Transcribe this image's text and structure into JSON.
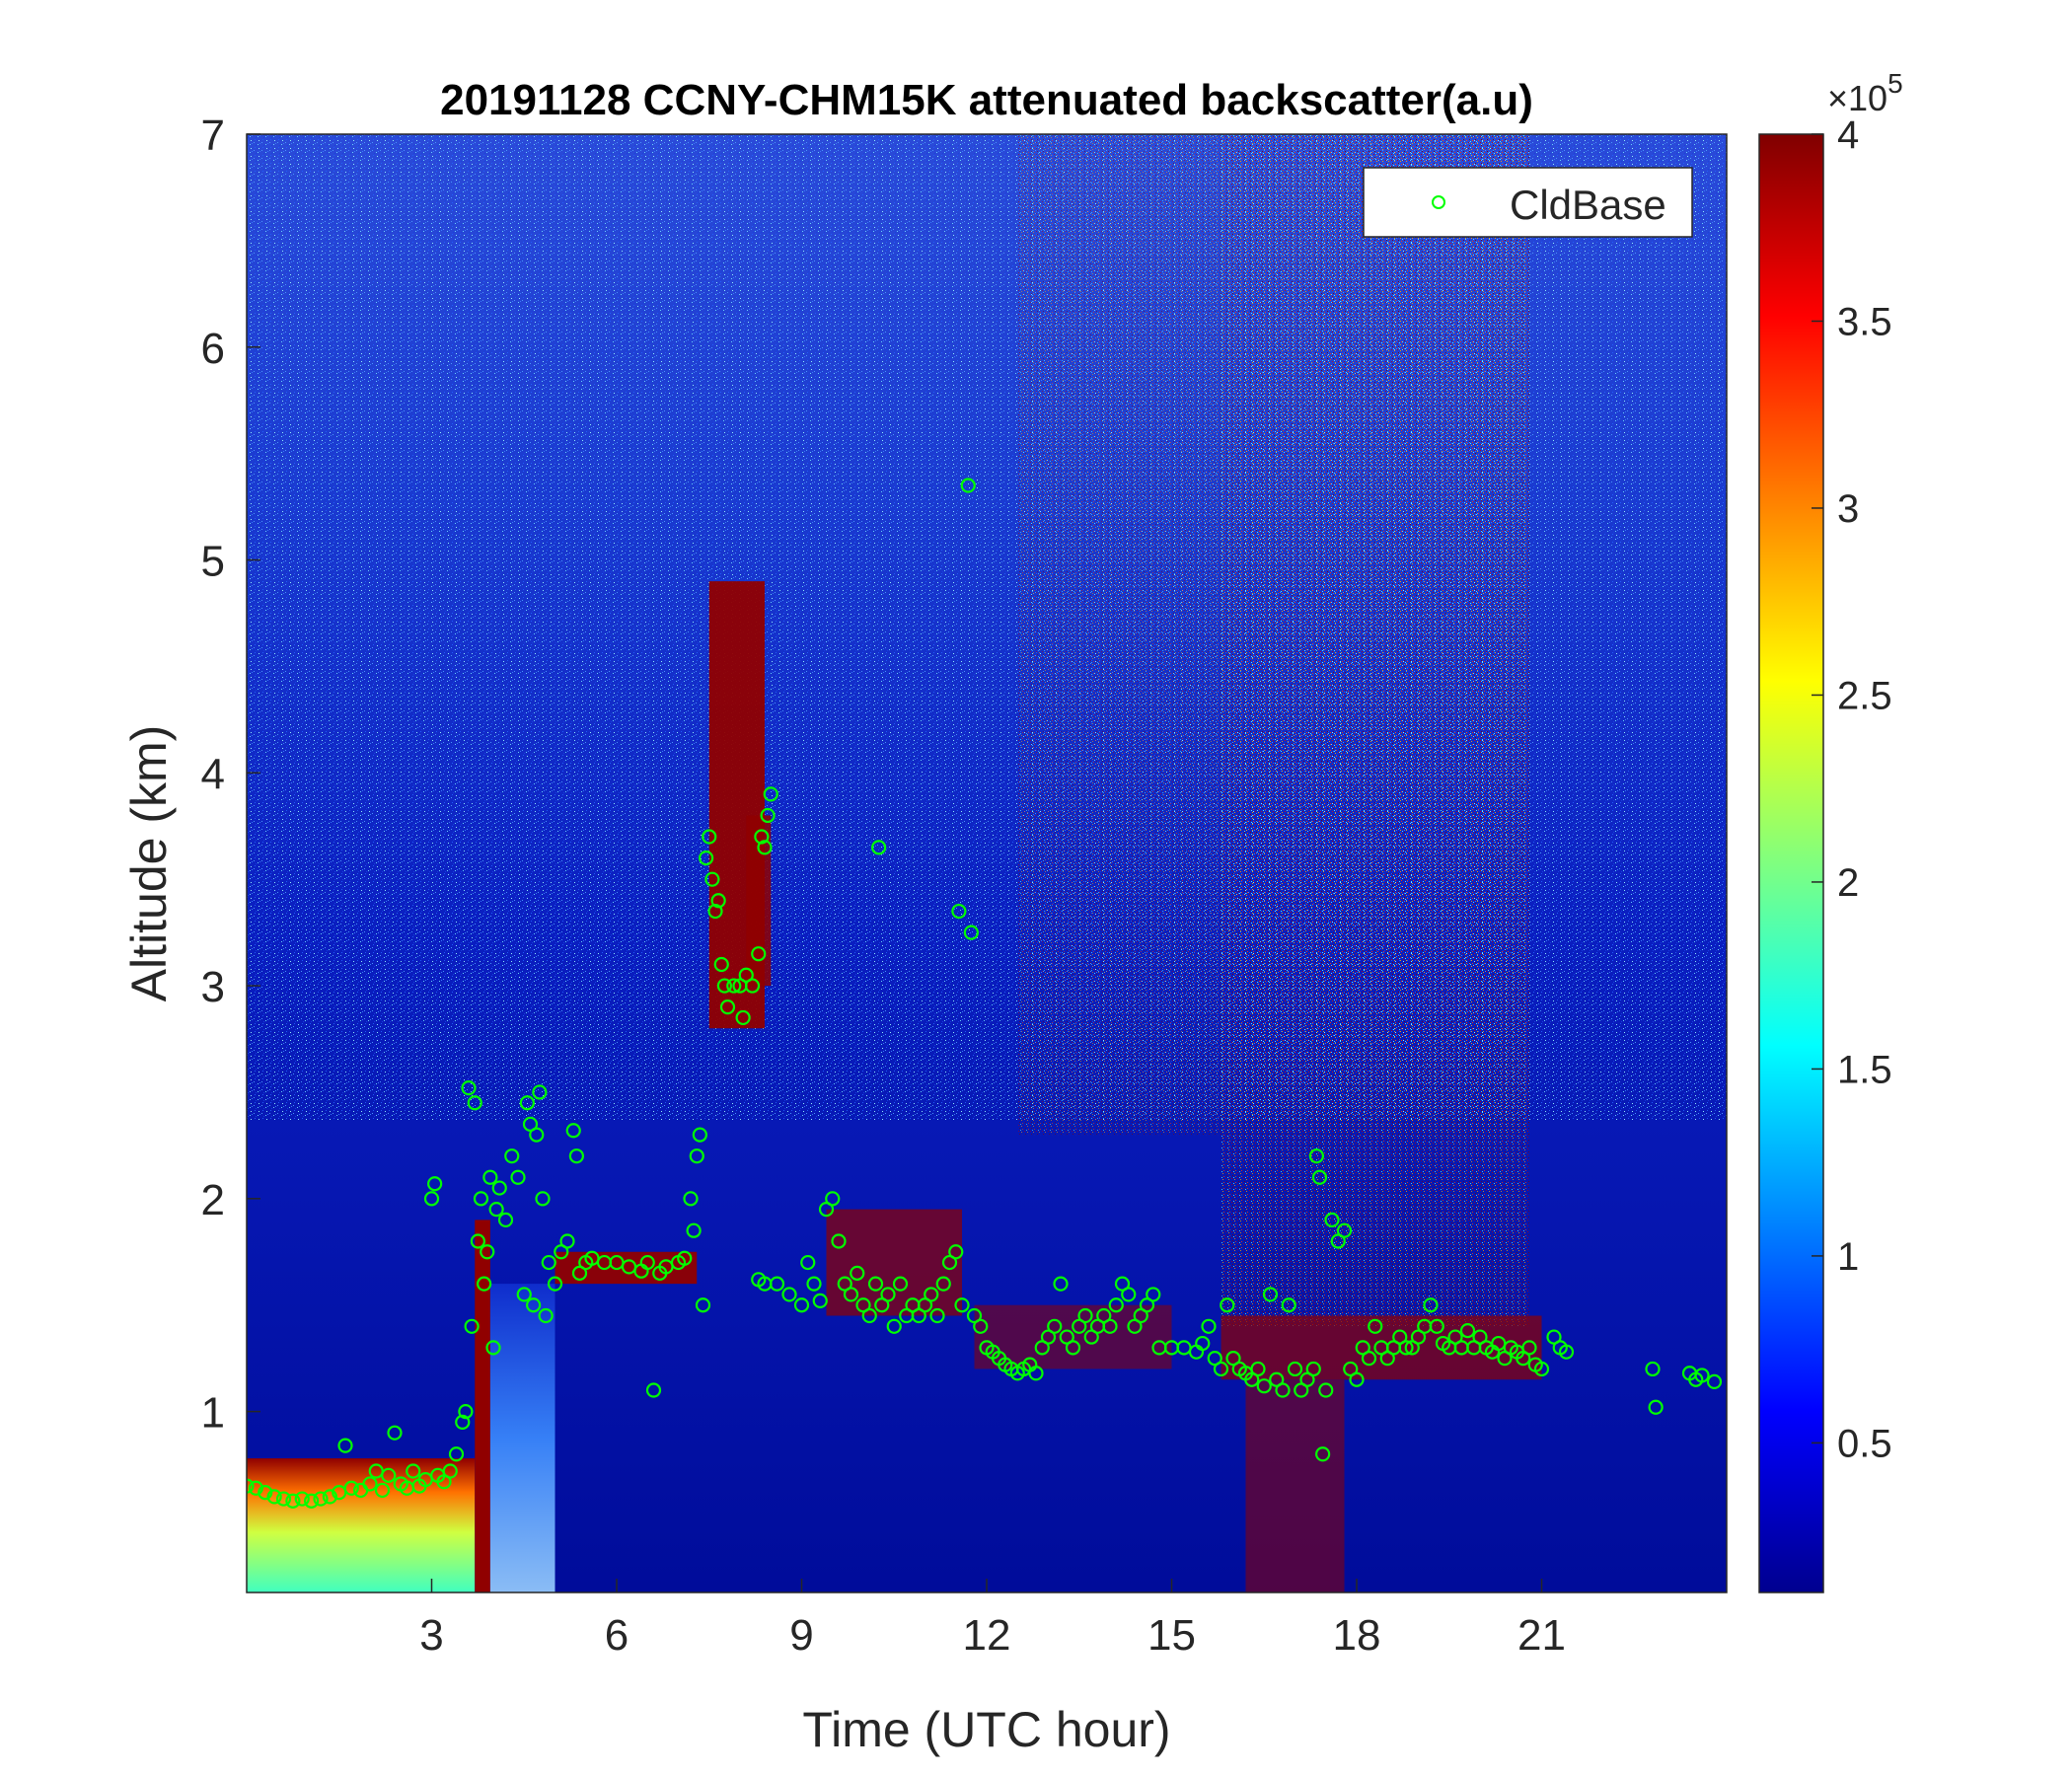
{
  "chart_data": {
    "type": "heatmap",
    "title": "20191128 CCNY-CHM15K attenuated backscatter(a.u)",
    "xlabel": "Time (UTC hour)",
    "ylabel": "Altitude (km)",
    "xlim": [
      0,
      24
    ],
    "ylim": [
      0.15,
      7
    ],
    "xticks": [
      3,
      6,
      9,
      12,
      15,
      18,
      21
    ],
    "yticks": [
      1,
      2,
      3,
      4,
      5,
      6,
      7
    ],
    "colorbar": {
      "colormap": "jet",
      "clim": [
        0.1,
        4
      ],
      "ticks": [
        0.5,
        1,
        1.5,
        2,
        2.5,
        3,
        3.5,
        4
      ],
      "tick_labels": [
        "0.5",
        "1",
        "1.5",
        "2",
        "2.5",
        "3",
        "3.5",
        "4"
      ],
      "exponent_label": "×10",
      "exponent_power": "5"
    },
    "legend": {
      "placement": "top-right",
      "entries": [
        "CldBase"
      ]
    },
    "series": [
      {
        "name": "CldBase",
        "marker": "circle",
        "color": "#00ff00",
        "points": [
          [
            0.0,
            0.65
          ],
          [
            0.15,
            0.64
          ],
          [
            0.3,
            0.62
          ],
          [
            0.45,
            0.6
          ],
          [
            0.6,
            0.59
          ],
          [
            0.75,
            0.58
          ],
          [
            0.9,
            0.59
          ],
          [
            1.05,
            0.58
          ],
          [
            1.2,
            0.59
          ],
          [
            1.35,
            0.6
          ],
          [
            1.5,
            0.62
          ],
          [
            1.6,
            0.84
          ],
          [
            1.7,
            0.64
          ],
          [
            1.85,
            0.63
          ],
          [
            2.0,
            0.66
          ],
          [
            2.1,
            0.72
          ],
          [
            2.2,
            0.63
          ],
          [
            2.3,
            0.7
          ],
          [
            2.4,
            0.9
          ],
          [
            2.5,
            0.66
          ],
          [
            2.6,
            0.64
          ],
          [
            2.7,
            0.72
          ],
          [
            2.8,
            0.65
          ],
          [
            2.9,
            0.68
          ],
          [
            3.0,
            2.0
          ],
          [
            3.05,
            2.07
          ],
          [
            3.1,
            0.7
          ],
          [
            3.2,
            0.67
          ],
          [
            3.3,
            0.72
          ],
          [
            3.4,
            0.8
          ],
          [
            3.5,
            0.95
          ],
          [
            3.55,
            1.0
          ],
          [
            3.6,
            2.52
          ],
          [
            3.65,
            1.4
          ],
          [
            3.7,
            2.45
          ],
          [
            3.75,
            1.8
          ],
          [
            3.8,
            2.0
          ],
          [
            3.85,
            1.6
          ],
          [
            3.9,
            1.75
          ],
          [
            3.95,
            2.1
          ],
          [
            4.0,
            1.3
          ],
          [
            4.05,
            1.95
          ],
          [
            4.1,
            2.05
          ],
          [
            4.2,
            1.9
          ],
          [
            4.3,
            2.2
          ],
          [
            4.4,
            2.1
          ],
          [
            4.5,
            1.55
          ],
          [
            4.55,
            2.45
          ],
          [
            4.6,
            2.35
          ],
          [
            4.65,
            1.5
          ],
          [
            4.7,
            2.3
          ],
          [
            4.75,
            2.5
          ],
          [
            4.8,
            2.0
          ],
          [
            4.85,
            1.45
          ],
          [
            4.9,
            1.7
          ],
          [
            5.0,
            1.6
          ],
          [
            5.1,
            1.75
          ],
          [
            5.2,
            1.8
          ],
          [
            5.3,
            2.32
          ],
          [
            5.35,
            2.2
          ],
          [
            5.4,
            1.65
          ],
          [
            5.5,
            1.7
          ],
          [
            5.6,
            1.72
          ],
          [
            5.8,
            1.7
          ],
          [
            6.0,
            1.7
          ],
          [
            6.2,
            1.68
          ],
          [
            6.4,
            1.66
          ],
          [
            6.5,
            1.7
          ],
          [
            6.6,
            1.1
          ],
          [
            6.7,
            1.65
          ],
          [
            6.8,
            1.68
          ],
          [
            7.0,
            1.7
          ],
          [
            7.1,
            1.72
          ],
          [
            7.2,
            2.0
          ],
          [
            7.25,
            1.85
          ],
          [
            7.3,
            2.2
          ],
          [
            7.35,
            2.3
          ],
          [
            7.4,
            1.5
          ],
          [
            7.45,
            3.6
          ],
          [
            7.5,
            3.7
          ],
          [
            7.55,
            3.5
          ],
          [
            7.6,
            3.35
          ],
          [
            7.65,
            3.4
          ],
          [
            7.7,
            3.1
          ],
          [
            7.75,
            3.0
          ],
          [
            7.8,
            2.9
          ],
          [
            7.9,
            3.0
          ],
          [
            8.0,
            3.0
          ],
          [
            8.05,
            2.85
          ],
          [
            8.1,
            3.05
          ],
          [
            8.2,
            3.0
          ],
          [
            8.3,
            3.15
          ],
          [
            8.35,
            3.7
          ],
          [
            8.4,
            3.65
          ],
          [
            8.45,
            3.8
          ],
          [
            8.5,
            3.9
          ],
          [
            8.3,
            1.62
          ],
          [
            8.4,
            1.6
          ],
          [
            8.6,
            1.6
          ],
          [
            8.8,
            1.55
          ],
          [
            9.0,
            1.5
          ],
          [
            9.1,
            1.7
          ],
          [
            9.2,
            1.6
          ],
          [
            9.3,
            1.52
          ],
          [
            9.4,
            1.95
          ],
          [
            9.5,
            2.0
          ],
          [
            9.6,
            1.8
          ],
          [
            9.7,
            1.6
          ],
          [
            9.8,
            1.55
          ],
          [
            9.9,
            1.65
          ],
          [
            10.0,
            1.5
          ],
          [
            10.1,
            1.45
          ],
          [
            10.2,
            1.6
          ],
          [
            10.25,
            3.65
          ],
          [
            10.3,
            1.5
          ],
          [
            10.4,
            1.55
          ],
          [
            10.5,
            1.4
          ],
          [
            10.6,
            1.6
          ],
          [
            10.7,
            1.45
          ],
          [
            10.8,
            1.5
          ],
          [
            10.9,
            1.45
          ],
          [
            11.0,
            1.5
          ],
          [
            11.1,
            1.55
          ],
          [
            11.2,
            1.45
          ],
          [
            11.3,
            1.6
          ],
          [
            11.4,
            1.7
          ],
          [
            11.5,
            1.75
          ],
          [
            11.55,
            3.35
          ],
          [
            11.6,
            1.5
          ],
          [
            11.7,
            5.35
          ],
          [
            11.75,
            3.25
          ],
          [
            11.8,
            1.45
          ],
          [
            11.9,
            1.4
          ],
          [
            12.0,
            1.3
          ],
          [
            12.1,
            1.28
          ],
          [
            12.2,
            1.25
          ],
          [
            12.3,
            1.22
          ],
          [
            12.4,
            1.2
          ],
          [
            12.5,
            1.18
          ],
          [
            12.6,
            1.2
          ],
          [
            12.7,
            1.22
          ],
          [
            12.8,
            1.18
          ],
          [
            12.9,
            1.3
          ],
          [
            13.0,
            1.35
          ],
          [
            13.1,
            1.4
          ],
          [
            13.2,
            1.6
          ],
          [
            13.3,
            1.35
          ],
          [
            13.4,
            1.3
          ],
          [
            13.5,
            1.4
          ],
          [
            13.6,
            1.45
          ],
          [
            13.7,
            1.35
          ],
          [
            13.8,
            1.4
          ],
          [
            13.9,
            1.45
          ],
          [
            14.0,
            1.4
          ],
          [
            14.1,
            1.5
          ],
          [
            14.2,
            1.6
          ],
          [
            14.3,
            1.55
          ],
          [
            14.4,
            1.4
          ],
          [
            14.5,
            1.45
          ],
          [
            14.6,
            1.5
          ],
          [
            14.7,
            1.55
          ],
          [
            14.8,
            1.3
          ],
          [
            15.0,
            1.3
          ],
          [
            15.2,
            1.3
          ],
          [
            15.4,
            1.28
          ],
          [
            15.5,
            1.32
          ],
          [
            15.6,
            1.4
          ],
          [
            15.7,
            1.25
          ],
          [
            15.8,
            1.2
          ],
          [
            15.9,
            1.5
          ],
          [
            16.0,
            1.25
          ],
          [
            16.1,
            1.2
          ],
          [
            16.2,
            1.18
          ],
          [
            16.3,
            1.15
          ],
          [
            16.4,
            1.2
          ],
          [
            16.5,
            1.12
          ],
          [
            16.6,
            1.55
          ],
          [
            16.7,
            1.15
          ],
          [
            16.8,
            1.1
          ],
          [
            16.9,
            1.5
          ],
          [
            17.0,
            1.2
          ],
          [
            17.1,
            1.1
          ],
          [
            17.2,
            1.15
          ],
          [
            17.3,
            1.2
          ],
          [
            17.35,
            2.2
          ],
          [
            17.4,
            2.1
          ],
          [
            17.45,
            0.8
          ],
          [
            17.5,
            1.1
          ],
          [
            17.6,
            1.9
          ],
          [
            17.7,
            1.8
          ],
          [
            17.8,
            1.85
          ],
          [
            17.9,
            1.2
          ],
          [
            18.0,
            1.15
          ],
          [
            18.1,
            1.3
          ],
          [
            18.2,
            1.25
          ],
          [
            18.3,
            1.4
          ],
          [
            18.4,
            1.3
          ],
          [
            18.5,
            1.25
          ],
          [
            18.6,
            1.3
          ],
          [
            18.7,
            1.35
          ],
          [
            18.8,
            1.3
          ],
          [
            18.9,
            1.3
          ],
          [
            19.0,
            1.35
          ],
          [
            19.1,
            1.4
          ],
          [
            19.2,
            1.5
          ],
          [
            19.3,
            1.4
          ],
          [
            19.4,
            1.32
          ],
          [
            19.5,
            1.3
          ],
          [
            19.6,
            1.35
          ],
          [
            19.7,
            1.3
          ],
          [
            19.8,
            1.38
          ],
          [
            19.9,
            1.3
          ],
          [
            20.0,
            1.35
          ],
          [
            20.1,
            1.3
          ],
          [
            20.2,
            1.28
          ],
          [
            20.3,
            1.32
          ],
          [
            20.4,
            1.25
          ],
          [
            20.5,
            1.3
          ],
          [
            20.6,
            1.28
          ],
          [
            20.7,
            1.25
          ],
          [
            20.8,
            1.3
          ],
          [
            20.9,
            1.22
          ],
          [
            21.0,
            1.2
          ],
          [
            21.2,
            1.35
          ],
          [
            21.3,
            1.3
          ],
          [
            21.4,
            1.28
          ],
          [
            22.8,
            1.2
          ],
          [
            22.85,
            1.02
          ],
          [
            23.4,
            1.18
          ],
          [
            23.5,
            1.15
          ],
          [
            23.6,
            1.17
          ],
          [
            23.8,
            1.14
          ]
        ]
      }
    ]
  }
}
